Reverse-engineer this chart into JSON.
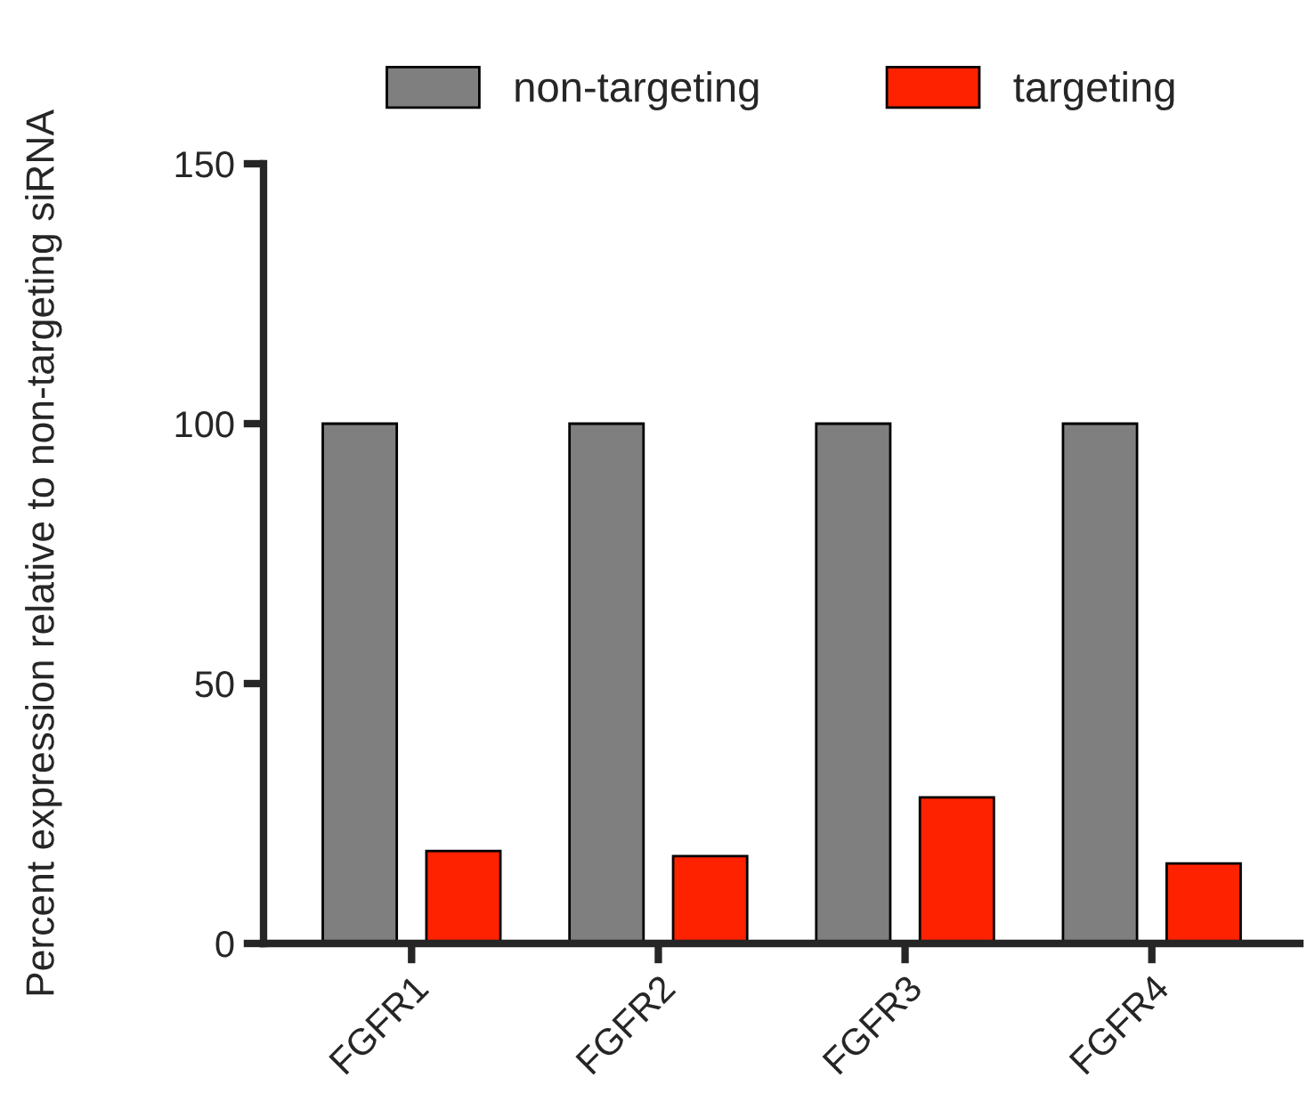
{
  "chart_data": {
    "type": "bar",
    "ylabel": "Percent expression relative to non-targeting siRNA",
    "categories": [
      "FGFR1",
      "FGFR2",
      "FGFR3",
      "FGFR4"
    ],
    "series": [
      {
        "name": "non-targeting",
        "color": "#7f7f7f",
        "values": [
          100,
          100,
          100,
          100
        ]
      },
      {
        "name": "targeting",
        "color": "#ff2200",
        "values": [
          17.8,
          16.8,
          28.1,
          15.4
        ]
      }
    ],
    "ylim": [
      0,
      150
    ],
    "yticks": [
      0,
      50,
      100,
      150
    ],
    "grid": false,
    "legend": "top"
  }
}
